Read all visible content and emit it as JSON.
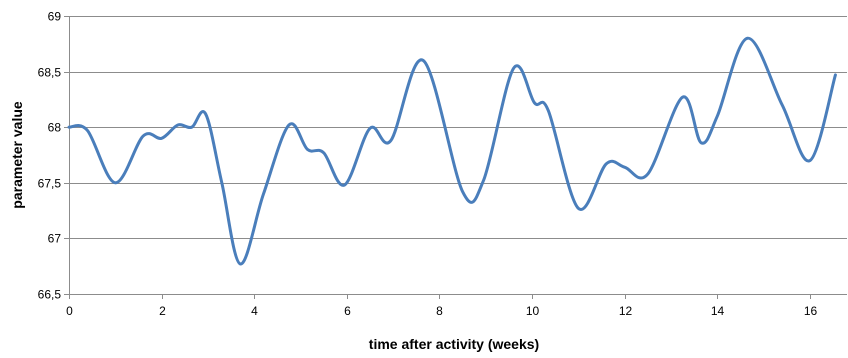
{
  "chart_data": {
    "type": "line",
    "title": "",
    "xlabel": "time after activity (weeks)",
    "ylabel": "parameter value",
    "xlim": [
      0,
      16.8
    ],
    "ylim": [
      66.5,
      69
    ],
    "x_ticks": [
      0,
      2,
      4,
      6,
      8,
      10,
      12,
      14,
      16
    ],
    "x_tick_labels": [
      "0",
      "2",
      "4",
      "6",
      "8",
      "10",
      "12",
      "14",
      "16"
    ],
    "y_ticks": [
      66.5,
      67,
      67.5,
      68,
      68.5,
      69
    ],
    "y_tick_labels": [
      "66,5",
      "67",
      "67,5",
      "68",
      "68,5",
      "69"
    ],
    "grid": "horizontal",
    "legend": "none",
    "line_color": "#4a7ebb",
    "series": [
      {
        "x": [
          0,
          0.4,
          1.0,
          1.6,
          2.0,
          2.35,
          2.65,
          2.95,
          3.3,
          3.7,
          4.2,
          4.75,
          5.15,
          5.5,
          5.95,
          6.5,
          6.95,
          7.65,
          8.5,
          8.95,
          9.6,
          10.05,
          10.35,
          11.0,
          11.6,
          12.0,
          12.5,
          13.25,
          13.65,
          14.0,
          14.65,
          15.4,
          16.0,
          16.55
        ],
        "y": [
          68.0,
          67.97,
          67.5,
          67.92,
          67.9,
          68.02,
          68.0,
          68.12,
          67.5,
          66.77,
          67.4,
          68.02,
          67.8,
          67.77,
          67.48,
          67.99,
          67.88,
          68.6,
          67.42,
          67.52,
          68.53,
          68.22,
          68.15,
          67.27,
          67.67,
          67.64,
          67.58,
          68.27,
          67.86,
          68.1,
          68.8,
          68.2,
          67.7,
          68.47
        ]
      }
    ]
  }
}
